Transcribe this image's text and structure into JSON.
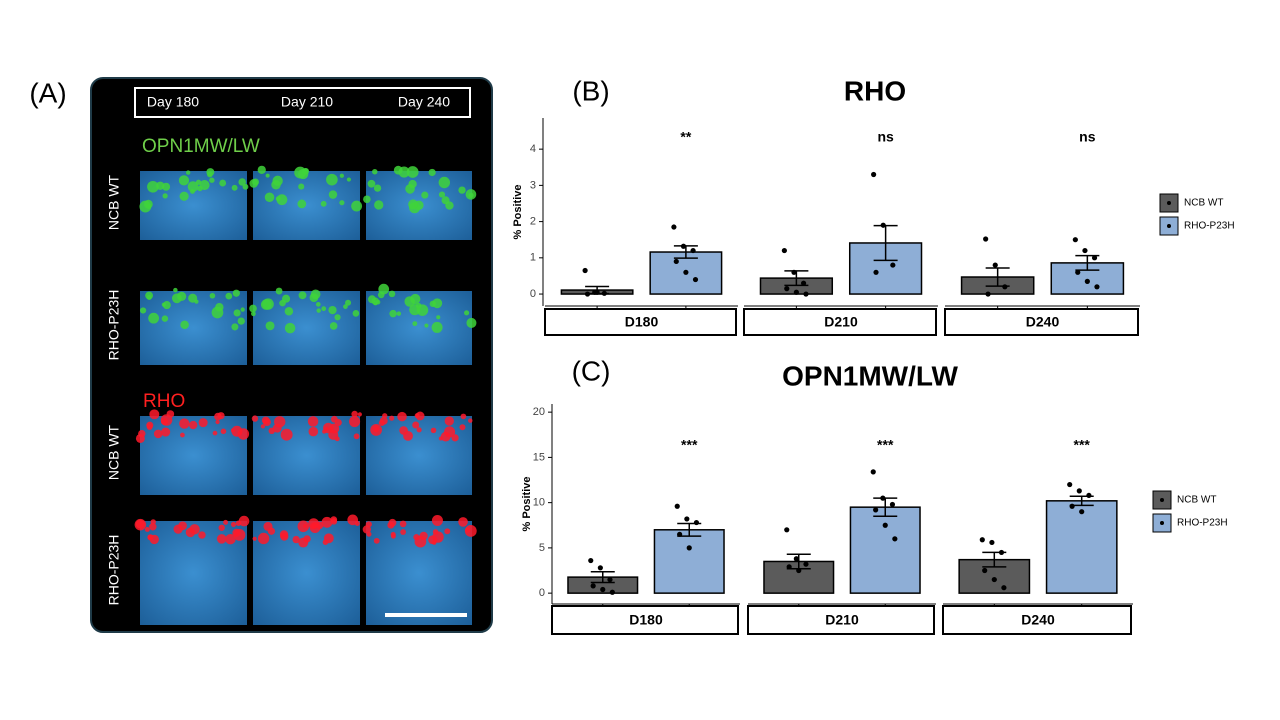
{
  "panel_labels": [
    "(A)",
    "(B)",
    "(C)"
  ],
  "image_panel": {
    "timepoints": [
      "Day 180",
      "Day 210",
      "Day 240"
    ],
    "stains": [
      "OPN1MW/LW",
      "RHO"
    ],
    "rows": [
      "NCB WT",
      "RHO-P23H",
      "NCB WT",
      "RHO-P23H"
    ]
  },
  "chart_data": [
    {
      "type": "bar",
      "title": "RHO",
      "ylabel": "% Positive",
      "facets": [
        "D180",
        "D210",
        "D240"
      ],
      "ylim": [
        -0.33,
        4.86
      ],
      "yticks": [
        0,
        1,
        2,
        3,
        4
      ],
      "significance": [
        "**",
        "ns",
        "ns"
      ],
      "series": [
        {
          "name": "NCB WT",
          "color": "#5b5b5b",
          "values": [
            0.11,
            0.44,
            0.47
          ],
          "errors": [
            0.1,
            0.2,
            0.25
          ],
          "points": [
            [
              0.65,
              0.05,
              0.02,
              0.0,
              0.05
            ],
            [
              1.2,
              0.6,
              0.3,
              0.15,
              0.05,
              0.0
            ],
            [
              1.52,
              0.8,
              0.2,
              0.0
            ]
          ]
        },
        {
          "name": "RHO-P23H",
          "color": "#8eaed6",
          "values": [
            1.16,
            1.41,
            0.86
          ],
          "errors": [
            0.17,
            0.48,
            0.2
          ],
          "points": [
            [
              1.85,
              1.32,
              1.2,
              0.9,
              0.6,
              0.4
            ],
            [
              3.3,
              1.9,
              0.8,
              0.6
            ],
            [
              1.5,
              1.2,
              1.0,
              0.6,
              0.35,
              0.2
            ]
          ]
        }
      ]
    },
    {
      "type": "bar",
      "title": "OPN1MW/LW",
      "ylabel": "% Positive",
      "facets": [
        "D180",
        "D210",
        "D240"
      ],
      "ylim": [
        -1.2,
        20.9
      ],
      "yticks": [
        0,
        5,
        10,
        15,
        20
      ],
      "significance": [
        "***",
        "***",
        "***"
      ],
      "series": [
        {
          "name": "NCB WT",
          "color": "#5b5b5b",
          "values": [
            1.77,
            3.5,
            3.7
          ],
          "errors": [
            0.6,
            0.8,
            0.8
          ],
          "points": [
            [
              3.6,
              2.8,
              1.5,
              0.8,
              0.4,
              0.1
            ],
            [
              7.0,
              3.8,
              3.2,
              2.9,
              2.5
            ],
            [
              5.9,
              5.6,
              4.5,
              2.5,
              1.5,
              0.6
            ]
          ]
        },
        {
          "name": "RHO-P23H",
          "color": "#8eaed6",
          "values": [
            7.0,
            9.5,
            10.2
          ],
          "errors": [
            0.7,
            1.0,
            0.5
          ],
          "points": [
            [
              9.6,
              8.2,
              7.8,
              6.5,
              5.0
            ],
            [
              13.4,
              10.5,
              9.8,
              9.2,
              7.5,
              6.0
            ],
            [
              12.0,
              11.3,
              10.8,
              9.6,
              9.0
            ]
          ]
        }
      ]
    }
  ]
}
